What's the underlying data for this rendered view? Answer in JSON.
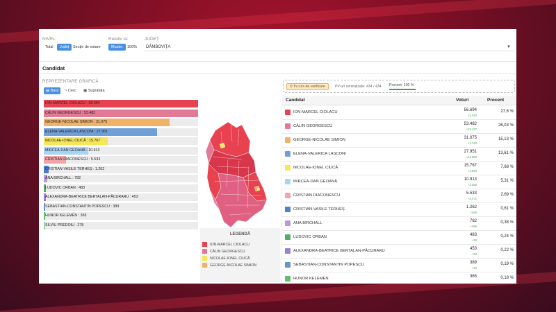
{
  "filters": {
    "nivel_label": "NIVEL:",
    "nivel_options": [
      "Total",
      "Județ",
      "Secție de votare"
    ],
    "nivel_active": 1,
    "relativ_label": "Relativ la:",
    "relativ_options": [
      "Muster",
      "100%"
    ],
    "relativ_active": 0,
    "judet_label": "JUDEȚ",
    "judet_value": "DÂMBOVIȚA"
  },
  "section_title": "Candidat",
  "chart_panel": {
    "label": "REPREZENTARE GRAFICĂ",
    "view_options": [
      "Bara",
      "Cerc",
      "Suprafata"
    ],
    "view_active": 0
  },
  "status": {
    "verif_badge": "În curs de verificare",
    "pv_text": "PV-uri centralizate: 434 / 434",
    "percent_text": "Procent: 100 %",
    "percent_value": 100
  },
  "table": {
    "headers": [
      "Candidat",
      "Voturi",
      "Procent"
    ],
    "rows": [
      {
        "name": "ION-MARCEL CIOLACU",
        "votes": "56.694",
        "delta": "+3.010",
        "pct": "27,6 %",
        "color": "#e8414f"
      },
      {
        "name": "CĂLIN GEORGESCU",
        "votes": "53.482",
        "delta": "+22.437",
        "pct": "26,03 %",
        "color": "#e27a95"
      },
      {
        "name": "GEORGE-NICOLAE SIMION",
        "votes": "31.075",
        "delta": "+3.134",
        "pct": "15,13 %",
        "color": "#f1b166"
      },
      {
        "name": "ELENA-VALERICA LASCONI",
        "votes": "27.951",
        "delta": "+12.983",
        "pct": "13,61 %",
        "color": "#6f9fd6"
      },
      {
        "name": "NICOLAE-IONEL CIUCĂ",
        "votes": "15.767",
        "delta": "+4.844",
        "pct": "7,68 %",
        "color": "#f5e65a"
      },
      {
        "name": "MIRCEA-DAN GEOANĂ",
        "votes": "10.913",
        "delta": "+3.360",
        "pct": "5,31 %",
        "color": "#a9d3f2"
      },
      {
        "name": "CRISTIAN DIACONESCU",
        "votes": "5.533",
        "delta": "+4.271",
        "pct": "2,69 %",
        "color": "#f2a4a8"
      },
      {
        "name": "CRISTIAN-VASILE TERHEȘ",
        "votes": "1.262",
        "delta": "+460",
        "pct": "0,61 %",
        "color": "#4d7fcf"
      },
      {
        "name": "ANA BIRCHALL",
        "votes": "782",
        "delta": "+286",
        "pct": "0,38 %",
        "color": "#b99ad8"
      },
      {
        "name": "LUDOVIC ORBAN",
        "votes": "483",
        "delta": "+30",
        "pct": "0,24 %",
        "color": "#5aa96a"
      },
      {
        "name": "ALEXANDRA-BEATRICE BERTALAN-PĂCURARU",
        "votes": "453",
        "delta": "+64",
        "pct": "0,22 %",
        "color": "#9b7fd0"
      },
      {
        "name": "SEBASTIAN-CONSTANTIN POPESCU",
        "votes": "389",
        "delta": "+24",
        "pct": "0,19 %",
        "color": "#6a93c8"
      },
      {
        "name": "HUNOR KELEMEN",
        "votes": "365",
        "delta": "",
        "pct": "0,18 %",
        "color": "#5fbf6f"
      }
    ]
  },
  "bar_chart": {
    "items": [
      {
        "label": "ION-MARCEL CIOLACU : 56.694",
        "value": 56694,
        "color": "#e8414f"
      },
      {
        "label": "CĂLIN GEORGESCU : 53.482",
        "value": 53482,
        "color": "#e27a95"
      },
      {
        "label": "GEORGE-NICOLAE SIMION : 31.075",
        "value": 31075,
        "color": "#f1b166"
      },
      {
        "label": "ELENA-VALERICA LASCONI : 27.951",
        "value": 27951,
        "color": "#6f9fd6"
      },
      {
        "label": "NICOLAE-IONEL CIUCĂ : 15.767",
        "value": 15767,
        "color": "#f5e65a"
      },
      {
        "label": "MIRCEA-DAN GEOANĂ : 10.913",
        "value": 10913,
        "color": "#a9d3f2"
      },
      {
        "label": "CRISTIAN DIACONESCU : 5.533",
        "value": 5533,
        "color": "#f2a4a8"
      },
      {
        "label": "CRISTIAN-VASILE TERHEȘ : 1.262",
        "value": 1262,
        "color": "#4d7fcf"
      },
      {
        "label": "ANA BIRCHALL : 782",
        "value": 782,
        "color": "#b99ad8"
      },
      {
        "label": "LUDOVIC ORBAN : 483",
        "value": 483,
        "color": "#5aa96a"
      },
      {
        "label": "ALEXANDRA-BEATRICE BERTALAN-PĂCURARU : 453",
        "value": 453,
        "color": "#9b7fd0"
      },
      {
        "label": "SEBASTIAN-CONSTANTIN POPESCU : 389",
        "value": 389,
        "color": "#6a93c8"
      },
      {
        "label": "HUNOR KELEMEN : 365",
        "value": 365,
        "color": "#5fbf6f"
      },
      {
        "label": "SILVIU PREDOIU : 278",
        "value": 278,
        "color": "#9ad0a8"
      }
    ]
  },
  "legend": {
    "title": "LEGENDĂ",
    "items": [
      {
        "label": "ION-MARCEL CIOLACU",
        "color": "#e8414f"
      },
      {
        "label": "CĂLIN GEORGESCU",
        "color": "#e27a95"
      },
      {
        "label": "NICOLAE-IONEL CIUCĂ",
        "color": "#f5e65a"
      },
      {
        "label": "GEORGE-NICOLAE SIMION",
        "color": "#f1b166"
      }
    ]
  }
}
